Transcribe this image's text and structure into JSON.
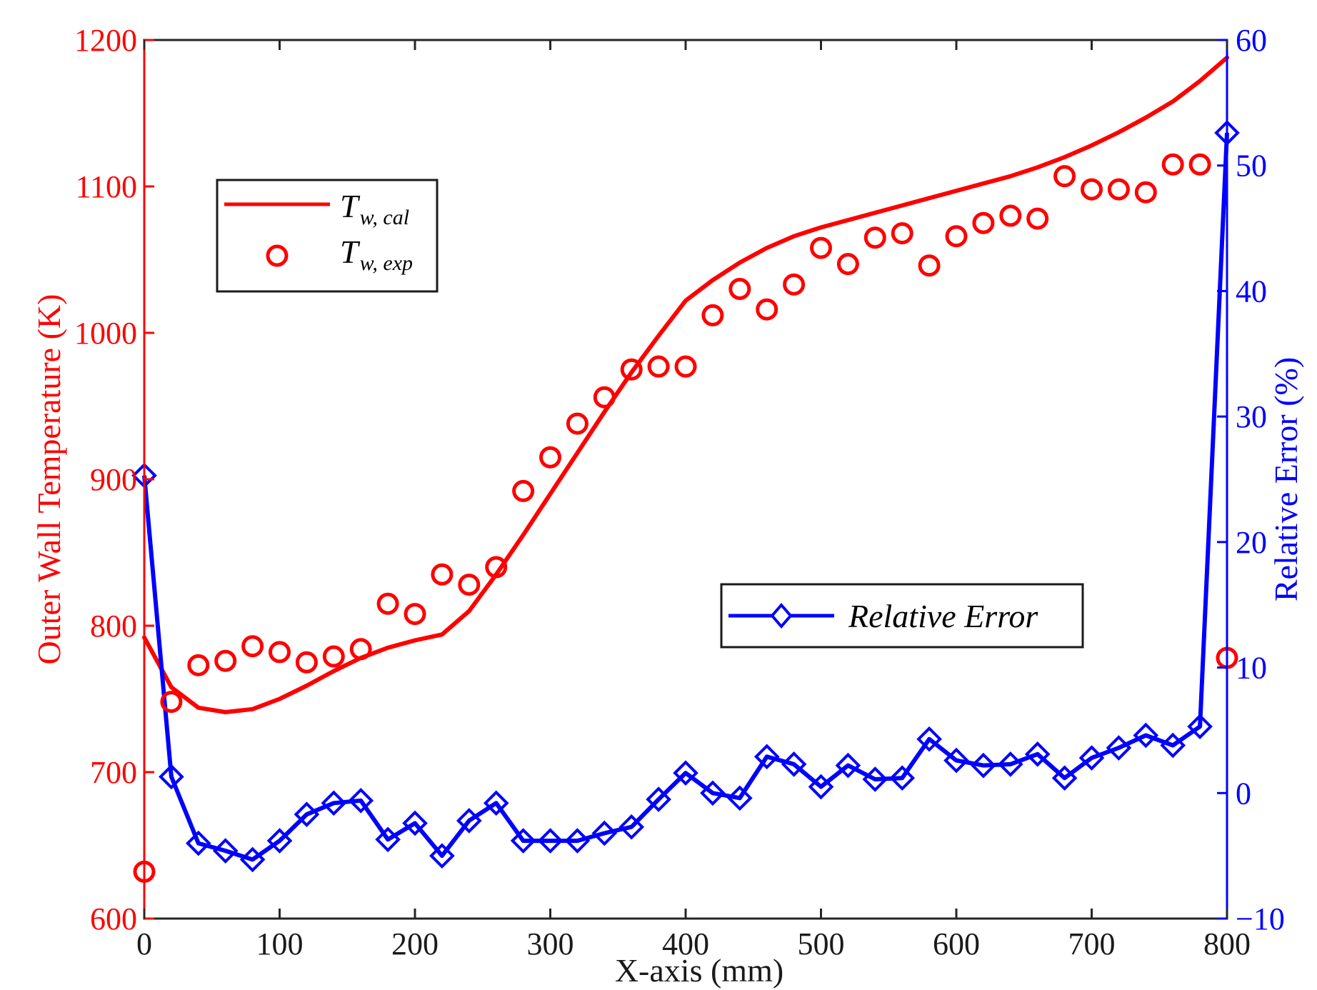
{
  "chart_data": {
    "type": "line",
    "x_axis": {
      "label": "X-axis (mm)",
      "range": [
        0,
        800
      ],
      "ticks": [
        0,
        100,
        200,
        300,
        400,
        500,
        600,
        700,
        800
      ]
    },
    "y_axis_left": {
      "label": "Outer Wall Temperature (K)",
      "range": [
        600,
        1200
      ],
      "ticks": [
        600,
        700,
        800,
        900,
        1000,
        1100,
        1200
      ],
      "color": "#ff0000"
    },
    "y_axis_right": {
      "label": "Relative Error (%)",
      "range": [
        -10,
        60
      ],
      "ticks": [
        -10,
        0,
        10,
        20,
        30,
        40,
        50,
        60
      ],
      "color": "#0000ff"
    },
    "series": [
      {
        "name": "T_w,cal",
        "legend_main": "T",
        "legend_sub": "w, cal",
        "axis": "left",
        "style": "line",
        "color": "#ff0000",
        "x": [
          0,
          20,
          40,
          60,
          80,
          100,
          120,
          140,
          160,
          180,
          200,
          220,
          240,
          260,
          280,
          300,
          320,
          340,
          360,
          380,
          400,
          420,
          440,
          460,
          480,
          500,
          520,
          540,
          560,
          580,
          600,
          620,
          640,
          660,
          680,
          700,
          720,
          740,
          760,
          780,
          800
        ],
        "y": [
          792,
          758,
          744,
          741,
          743,
          750,
          759,
          769,
          778,
          785,
          790,
          794,
          810,
          835,
          862,
          890,
          918,
          946,
          973,
          998,
          1022,
          1036,
          1048,
          1058,
          1066,
          1072,
          1077,
          1082,
          1087,
          1092,
          1097,
          1102,
          1107,
          1113,
          1120,
          1128,
          1137,
          1147,
          1158,
          1172,
          1188
        ]
      },
      {
        "name": "T_w,exp",
        "legend_main": "T",
        "legend_sub": "w, exp",
        "axis": "left",
        "style": "circle",
        "color": "#ff0000",
        "x": [
          0,
          20,
          40,
          60,
          80,
          100,
          120,
          140,
          160,
          180,
          200,
          220,
          240,
          260,
          280,
          300,
          320,
          340,
          360,
          380,
          400,
          420,
          440,
          460,
          480,
          500,
          520,
          540,
          560,
          580,
          600,
          620,
          640,
          660,
          680,
          700,
          720,
          740,
          760,
          780,
          800
        ],
        "y": [
          632,
          748,
          773,
          776,
          786,
          782,
          775,
          779,
          784,
          815,
          808,
          835,
          828,
          840,
          892,
          915,
          938,
          956,
          975,
          977,
          977,
          1012,
          1030,
          1016,
          1033,
          1058,
          1047,
          1065,
          1068,
          1046,
          1066,
          1075,
          1080,
          1078,
          1107,
          1098,
          1098,
          1096,
          1115,
          1115,
          778
        ]
      },
      {
        "name": "Relative Error",
        "axis": "right",
        "style": "line-diamond",
        "color": "#0000ff",
        "x": [
          0,
          20,
          40,
          60,
          80,
          100,
          120,
          140,
          160,
          180,
          200,
          220,
          240,
          260,
          280,
          300,
          320,
          340,
          360,
          380,
          400,
          420,
          440,
          460,
          480,
          500,
          520,
          540,
          560,
          580,
          600,
          620,
          640,
          660,
          680,
          700,
          720,
          740,
          760,
          780,
          800
        ],
        "y": [
          25.3,
          1.3,
          -4.0,
          -4.6,
          -5.3,
          -3.8,
          -1.7,
          -0.8,
          -0.6,
          -3.7,
          -2.4,
          -5.0,
          -2.2,
          -0.8,
          -3.8,
          -3.8,
          -3.8,
          -3.2,
          -2.7,
          -0.5,
          1.6,
          0.0,
          -0.4,
          2.9,
          2.3,
          0.5,
          2.2,
          1.1,
          1.2,
          4.3,
          2.6,
          2.2,
          2.3,
          3.1,
          1.2,
          2.8,
          3.6,
          4.6,
          3.8,
          5.3,
          52.6
        ]
      }
    ]
  }
}
